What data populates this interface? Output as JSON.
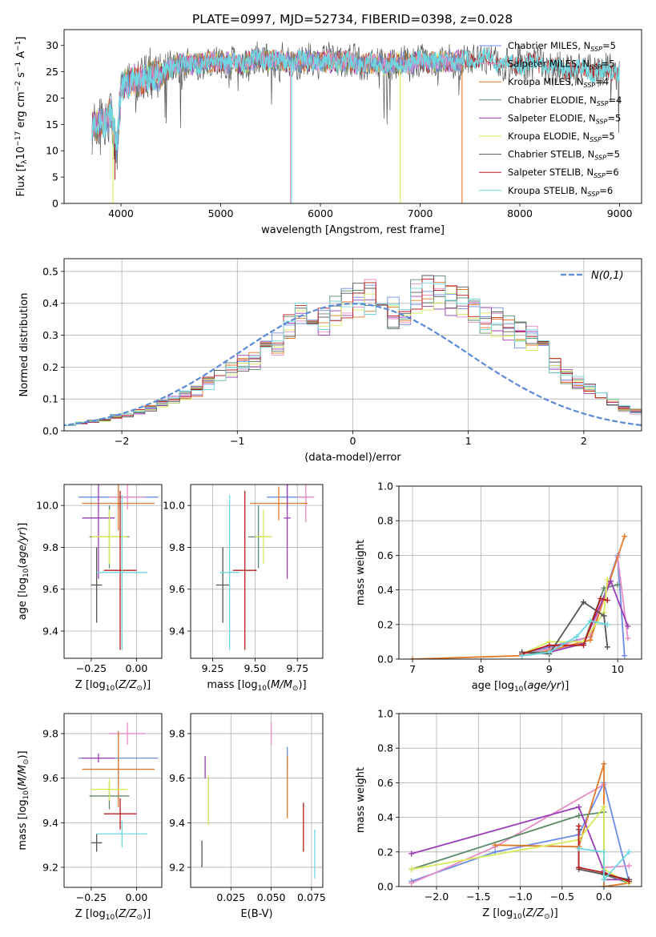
{
  "figure": {
    "title": "PLATE=0997, MJD=52734, FIBERID=0398, z=0.028"
  },
  "colors": {
    "Chabrier MILES": "#6c8ce8",
    "Salpeter MILES": "#e88cc4",
    "Kroupa MILES": "#e07a2a",
    "Chabrier ELODIE": "#5c8a6a",
    "Salpeter ELODIE": "#9b3cb8",
    "Kroupa ELODIE": "#d6ec5a",
    "Chabrier STELIB": "#555555",
    "Salpeter STELIB": "#b81c1c",
    "Kroupa STELIB": "#6ed8e0",
    "normal_curve": "#5b8ad6"
  },
  "chart_data": [
    {
      "id": "spectrum",
      "type": "line",
      "title": "PLATE=0997, MJD=52734, FIBERID=0398, z=0.028",
      "xlabel": "wavelength [Angstrom, rest frame]",
      "ylabel": "Flux [f_λ 10^-17 erg cm^-2 s^-1 A^-1]",
      "xlim": [
        3430,
        9220
      ],
      "ylim": [
        0,
        33
      ],
      "xticks": [
        4000,
        5000,
        6000,
        7000,
        8000,
        9000
      ],
      "yticks": [
        0,
        5,
        10,
        15,
        20,
        25,
        30
      ],
      "grid": false,
      "legend_position": "top-right",
      "legend": [
        {
          "model": "Chabrier MILES",
          "label": "Chabrier MILES, N",
          "sub": "SSP",
          "tail": "=5"
        },
        {
          "model": "Salpeter MILES",
          "label": "Salpeter MILES, N",
          "sub": "SSP",
          "tail": "=5"
        },
        {
          "model": "Kroupa MILES",
          "label": "Kroupa MILES, N",
          "sub": "SSP",
          "tail": "=4"
        },
        {
          "model": "Chabrier ELODIE",
          "label": "Chabrier ELODIE, N",
          "sub": "SSP",
          "tail": "=4"
        },
        {
          "model": "Salpeter ELODIE",
          "label": "Salpeter ELODIE, N",
          "sub": "SSP",
          "tail": "=5"
        },
        {
          "model": "Kroupa ELODIE",
          "label": "Kroupa ELODIE, N",
          "sub": "SSP",
          "tail": "=5"
        },
        {
          "model": "Chabrier STELIB",
          "label": "Chabrier STELIB, N",
          "sub": "SSP",
          "tail": "=5"
        },
        {
          "model": "Salpeter STELIB",
          "label": "Salpeter STELIB, N",
          "sub": "SSP",
          "tail": "=6"
        },
        {
          "model": "Kroupa STELIB",
          "label": "Kroupa STELIB, N",
          "sub": "SSP",
          "tail": "=6"
        }
      ],
      "spectrum_envelope": {
        "x": [
          3700,
          3800,
          3900,
          3960,
          4000,
          4100,
          4200,
          4300,
          4400,
          4500,
          4600,
          4800,
          5000,
          5200,
          5400,
          5600,
          5800,
          6000,
          6200,
          6400,
          6600,
          6800,
          7000,
          7200,
          7400,
          7600,
          7800,
          8000,
          8200,
          8400,
          8600,
          8800,
          9000
        ],
        "y": [
          14.5,
          15.0,
          17.0,
          10.0,
          22.0,
          23.5,
          23.0,
          24.5,
          24.0,
          26.0,
          26.5,
          26.5,
          27.0,
          26.5,
          27.5,
          27.0,
          27.0,
          27.0,
          27.0,
          26.5,
          26.5,
          26.5,
          27.0,
          27.0,
          27.0,
          27.5,
          27.0,
          26.5,
          26.5,
          25.5,
          25.5,
          25.0,
          25.0
        ]
      },
      "spectrum_dips": [
        {
          "x": 5700,
          "model": "Salpeter MILES",
          "to": 0
        },
        {
          "x": 5710,
          "model": "Kroupa STELIB",
          "to": 0
        },
        {
          "x": 6800,
          "model": "Kroupa ELODIE",
          "to": 0
        },
        {
          "x": 7420,
          "model": "Kroupa MILES",
          "to": 0
        },
        {
          "x": 3920,
          "model": "Kroupa ELODIE",
          "to": 0
        },
        {
          "x": 3940,
          "model": "Salpeter STELIB",
          "to": 4.5
        }
      ]
    },
    {
      "id": "residuals",
      "type": "area",
      "xlabel": "(data-model)/error",
      "ylabel": "Normed distribution",
      "xlim": [
        -2.5,
        2.5
      ],
      "ylim": [
        0,
        0.54
      ],
      "xticks": [
        -2,
        -1,
        0,
        1,
        2
      ],
      "yticks": [
        0.0,
        0.1,
        0.2,
        0.3,
        0.4,
        0.5
      ],
      "grid": true,
      "legend_position": "top-right",
      "legend": [
        {
          "label": "N(0,1)"
        }
      ],
      "bin_width": 0.1,
      "base_distribution": [
        0.02,
        0.025,
        0.03,
        0.035,
        0.045,
        0.05,
        0.06,
        0.07,
        0.085,
        0.095,
        0.11,
        0.125,
        0.15,
        0.17,
        0.19,
        0.21,
        0.22,
        0.25,
        0.27,
        0.32,
        0.36,
        0.33,
        0.34,
        0.38,
        0.4,
        0.41,
        0.42,
        0.4,
        0.37,
        0.36,
        0.42,
        0.43,
        0.44,
        0.41,
        0.4,
        0.37,
        0.35,
        0.34,
        0.32,
        0.3,
        0.29,
        0.25,
        0.2,
        0.17,
        0.15,
        0.13,
        0.11,
        0.09,
        0.07,
        0.06,
        0.05
      ]
    },
    {
      "id": "age-vs-z",
      "type": "scatter",
      "xlabel": "Z [log10(Z/Z⊙)]",
      "ylabel": "age [log10(age/yr)]",
      "xlim": [
        -0.4,
        0.14
      ],
      "ylim": [
        9.27,
        10.1
      ],
      "xticks": [
        -0.25,
        0.0
      ],
      "yticks": [
        9.4,
        9.6,
        9.8,
        10.0
      ],
      "grid": true,
      "points": [
        {
          "model": "Chabrier MILES",
          "x": -0.1,
          "xerr": 0.22,
          "y": 10.04,
          "yerr": 0.06
        },
        {
          "model": "Salpeter MILES",
          "x": -0.05,
          "xerr": 0.1,
          "y": 10.04,
          "yerr": 0.06
        },
        {
          "model": "Kroupa MILES",
          "x": -0.1,
          "xerr": 0.2,
          "y": 10.01,
          "yerr": 0.13
        },
        {
          "model": "Chabrier ELODIE",
          "x": -0.15,
          "xerr": 0.11,
          "y": 9.85,
          "yerr": 0.15
        },
        {
          "model": "Salpeter ELODIE",
          "x": -0.21,
          "xerr": 0.09,
          "y": 9.94,
          "yerr": 0.29
        },
        {
          "model": "Kroupa ELODIE",
          "x": -0.15,
          "xerr": 0.1,
          "y": 9.85,
          "yerr": 0.13
        },
        {
          "model": "Chabrier STELIB",
          "x": -0.22,
          "xerr": 0.03,
          "y": 9.62,
          "yerr": 0.18
        },
        {
          "model": "Salpeter STELIB",
          "x": -0.09,
          "xerr": 0.09,
          "y": 9.69,
          "yerr": 0.38
        },
        {
          "model": "Kroupa STELIB",
          "x": -0.08,
          "xerr": 0.14,
          "y": 9.68,
          "yerr": 0.37
        }
      ]
    },
    {
      "id": "age-vs-mass",
      "type": "scatter",
      "xlabel": "mass [log10(M/M⊙)]",
      "ylabel": "",
      "xlim": [
        9.12,
        9.9
      ],
      "ylim": [
        9.27,
        10.1
      ],
      "xticks": [
        9.25,
        9.5,
        9.75
      ],
      "yticks": [
        9.4,
        9.6,
        9.8,
        10.0
      ],
      "grid": true,
      "points": [
        {
          "model": "Chabrier MILES",
          "x": 9.69,
          "xerr": 0.12,
          "y": 10.04,
          "yerr": 0.06
        },
        {
          "model": "Salpeter MILES",
          "x": 9.8,
          "xerr": 0.05,
          "y": 10.04,
          "yerr": 0.12
        },
        {
          "model": "Kroupa MILES",
          "x": 9.64,
          "xerr": 0.17,
          "y": 10.01,
          "yerr": 0.08
        },
        {
          "model": "Chabrier ELODIE",
          "x": 9.52,
          "xerr": 0.06,
          "y": 9.85,
          "yerr": 0.15
        },
        {
          "model": "Salpeter ELODIE",
          "x": 9.69,
          "xerr": 0.02,
          "y": 9.94,
          "yerr": 0.29
        },
        {
          "model": "Kroupa ELODIE",
          "x": 9.55,
          "xerr": 0.05,
          "y": 9.85,
          "yerr": 0.13
        },
        {
          "model": "Chabrier STELIB",
          "x": 9.31,
          "xerr": 0.04,
          "y": 9.62,
          "yerr": 0.18
        },
        {
          "model": "Salpeter STELIB",
          "x": 9.44,
          "xerr": 0.07,
          "y": 9.69,
          "yerr": 0.38
        },
        {
          "model": "Kroupa STELIB",
          "x": 9.35,
          "xerr": 0.06,
          "y": 9.68,
          "yerr": 0.37
        }
      ]
    },
    {
      "id": "weight-vs-age",
      "type": "line",
      "xlabel": "age [log10(age/yr)]",
      "ylabel": "mass weight",
      "xlim": [
        6.8,
        10.35
      ],
      "ylim": [
        0,
        1.0
      ],
      "xticks": [
        7,
        8,
        9,
        10
      ],
      "yticks": [
        0.0,
        0.2,
        0.4,
        0.6,
        0.8,
        1.0
      ],
      "grid": true,
      "series": [
        {
          "model": "Chabrier MILES",
          "x": [
            8.6,
            9.0,
            9.6,
            10.0,
            10.1
          ],
          "y": [
            0.03,
            0.07,
            0.13,
            0.6,
            0.02
          ]
        },
        {
          "model": "Salpeter MILES",
          "x": [
            8.6,
            9.0,
            9.6,
            10.0,
            10.15
          ],
          "y": [
            0.03,
            0.06,
            0.13,
            0.59,
            0.12
          ]
        },
        {
          "model": "Kroupa MILES",
          "x": [
            7.0,
            8.6,
            9.0,
            9.6,
            10.1
          ],
          "y": [
            0.0,
            0.02,
            0.05,
            0.11,
            0.71
          ]
        },
        {
          "model": "Chabrier ELODIE",
          "x": [
            8.6,
            9.0,
            9.5,
            9.8,
            10.0
          ],
          "y": [
            0.04,
            0.04,
            0.09,
            0.41,
            0.43
          ]
        },
        {
          "model": "Salpeter ELODIE",
          "x": [
            8.6,
            9.0,
            9.5,
            9.9,
            10.15
          ],
          "y": [
            0.02,
            0.04,
            0.09,
            0.45,
            0.19
          ]
        },
        {
          "model": "Kroupa ELODIE",
          "x": [
            8.6,
            9.0,
            9.5,
            9.8,
            9.85
          ],
          "y": [
            0.03,
            0.1,
            0.1,
            0.27,
            0.46
          ]
        },
        {
          "model": "Chabrier STELIB",
          "x": [
            8.6,
            9.0,
            9.5,
            9.8,
            9.85
          ],
          "y": [
            0.04,
            0.03,
            0.33,
            0.25,
            0.07
          ]
        },
        {
          "model": "Salpeter STELIB",
          "x": [
            8.6,
            9.0,
            9.5,
            9.75,
            9.85
          ],
          "y": [
            0.03,
            0.08,
            0.08,
            0.35,
            0.34
          ]
        },
        {
          "model": "Kroupa STELIB",
          "x": [
            8.6,
            9.0,
            9.4,
            9.6,
            9.85
          ],
          "y": [
            0.02,
            0.04,
            0.13,
            0.22,
            0.2
          ]
        }
      ]
    },
    {
      "id": "mass-vs-z",
      "type": "scatter",
      "xlabel": "Z [log10(Z/Z⊙)]",
      "ylabel": "mass [log10(M/M⊙)]",
      "xlim": [
        -0.4,
        0.14
      ],
      "ylim": [
        9.11,
        9.89
      ],
      "xticks": [
        -0.25,
        0.0
      ],
      "yticks": [
        9.2,
        9.4,
        9.6,
        9.8
      ],
      "grid": true,
      "points": [
        {
          "model": "Chabrier MILES",
          "x": -0.1,
          "xerr": 0.22,
          "y": 9.69,
          "yerr": 0.12
        },
        {
          "model": "Salpeter MILES",
          "x": -0.05,
          "xerr": 0.1,
          "y": 9.8,
          "yerr": 0.05
        },
        {
          "model": "Kroupa MILES",
          "x": -0.1,
          "xerr": 0.2,
          "y": 9.64,
          "yerr": 0.17
        },
        {
          "model": "Chabrier ELODIE",
          "x": -0.15,
          "xerr": 0.11,
          "y": 9.52,
          "yerr": 0.06
        },
        {
          "model": "Salpeter ELODIE",
          "x": -0.21,
          "xerr": 0.09,
          "y": 9.69,
          "yerr": 0.02
        },
        {
          "model": "Kroupa ELODIE",
          "x": -0.15,
          "xerr": 0.1,
          "y": 9.55,
          "yerr": 0.05
        },
        {
          "model": "Chabrier STELIB",
          "x": -0.22,
          "xerr": 0.03,
          "y": 9.31,
          "yerr": 0.04
        },
        {
          "model": "Salpeter STELIB",
          "x": -0.09,
          "xerr": 0.09,
          "y": 9.44,
          "yerr": 0.07
        },
        {
          "model": "Kroupa STELIB",
          "x": -0.08,
          "xerr": 0.14,
          "y": 9.35,
          "yerr": 0.06
        }
      ]
    },
    {
      "id": "mass-vs-ebv",
      "type": "scatter",
      "xlabel": "E(B-V)",
      "ylabel": "",
      "xlim": [
        0.0,
        0.082
      ],
      "ylim": [
        9.11,
        9.89
      ],
      "xticks": [
        0.025,
        0.05,
        0.075
      ],
      "yticks": [
        9.2,
        9.4,
        9.6,
        9.8
      ],
      "grid": true,
      "points": [
        {
          "model": "Chabrier MILES",
          "x": 0.06,
          "xerr": 0,
          "y": 9.69,
          "yerr": 0.05
        },
        {
          "model": "Salpeter MILES",
          "x": 0.05,
          "xerr": 0,
          "y": 9.8,
          "yerr": 0.05
        },
        {
          "model": "Kroupa MILES",
          "x": 0.06,
          "xerr": 0,
          "y": 9.56,
          "yerr": 0.14
        },
        {
          "model": "Chabrier ELODIE",
          "x": 0.011,
          "xerr": 0,
          "y": 9.5,
          "yerr": 0.11
        },
        {
          "model": "Salpeter ELODIE",
          "x": 0.009,
          "xerr": 0,
          "y": 9.65,
          "yerr": 0.05
        },
        {
          "model": "Kroupa ELODIE",
          "x": 0.011,
          "xerr": 0,
          "y": 9.5,
          "yerr": 0.11
        },
        {
          "model": "Chabrier STELIB",
          "x": 0.007,
          "xerr": 0,
          "y": 9.26,
          "yerr": 0.06
        },
        {
          "model": "Salpeter STELIB",
          "x": 0.07,
          "xerr": 0,
          "y": 9.38,
          "yerr": 0.11
        },
        {
          "model": "Kroupa STELIB",
          "x": 0.077,
          "xerr": 0,
          "y": 9.26,
          "yerr": 0.11
        }
      ]
    },
    {
      "id": "weight-vs-z",
      "type": "line",
      "xlabel": "Z [log10(Z/Z⊙)]",
      "ylabel": "mass weight",
      "xlim": [
        -2.45,
        0.45
      ],
      "ylim": [
        0,
        1.0
      ],
      "xticks": [
        -2.0,
        -1.5,
        -1.0,
        -0.5,
        0.0
      ],
      "yticks": [
        0.0,
        0.2,
        0.4,
        0.6,
        0.8,
        1.0
      ],
      "grid": true,
      "series": [
        {
          "model": "Chabrier MILES",
          "x": [
            -2.3,
            -1.3,
            -0.3,
            0.0,
            0.3
          ],
          "y": [
            0.03,
            0.2,
            0.3,
            0.6,
            0.03
          ]
        },
        {
          "model": "Salpeter MILES",
          "x": [
            -2.3,
            -1.3,
            0.0,
            0.0,
            0.3
          ],
          "y": [
            0.02,
            0.23,
            0.59,
            0.11,
            0.12
          ]
        },
        {
          "model": "Kroupa MILES",
          "x": [
            -1.3,
            -0.3,
            0.0,
            0.0,
            0.3
          ],
          "y": [
            0.24,
            0.23,
            0.71,
            0.0,
            0.02
          ]
        },
        {
          "model": "Chabrier ELODIE",
          "x": [
            -2.3,
            -0.3,
            0.0,
            0.0,
            0.3
          ],
          "y": [
            0.1,
            0.41,
            0.43,
            0.07,
            0.02
          ]
        },
        {
          "model": "Salpeter ELODIE",
          "x": [
            -2.3,
            -0.3,
            0.0,
            0.0,
            0.3
          ],
          "y": [
            0.19,
            0.46,
            0.09,
            0.04,
            0.04
          ]
        },
        {
          "model": "Kroupa ELODIE",
          "x": [
            -2.3,
            -0.3,
            0.0,
            0.0,
            0.3
          ],
          "y": [
            0.1,
            0.27,
            0.46,
            0.1,
            0.02
          ]
        },
        {
          "model": "Chabrier STELIB",
          "x": [
            -0.3,
            -0.3,
            0.0,
            0.3
          ],
          "y": [
            0.33,
            0.1,
            0.07,
            0.04
          ]
        },
        {
          "model": "Salpeter STELIB",
          "x": [
            -0.3,
            -0.3,
            0.0,
            0.3
          ],
          "y": [
            0.35,
            0.11,
            0.08,
            0.03
          ]
        },
        {
          "model": "Kroupa STELIB",
          "x": [
            -0.3,
            0.0,
            0.0,
            0.3
          ],
          "y": [
            0.22,
            0.2,
            0.04,
            0.2
          ]
        }
      ]
    }
  ]
}
